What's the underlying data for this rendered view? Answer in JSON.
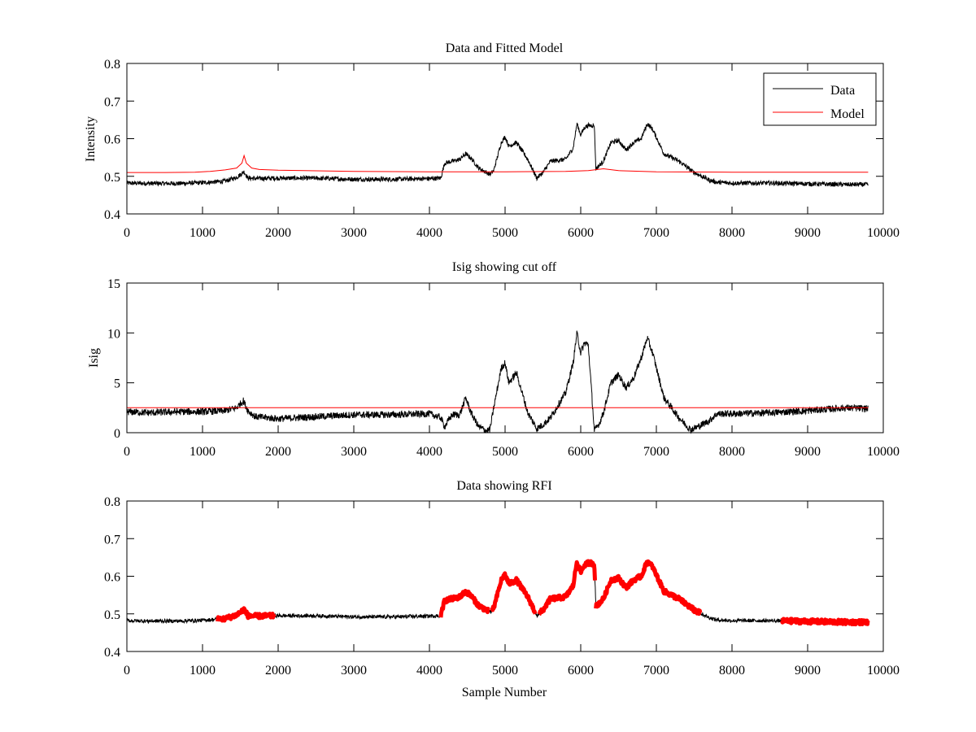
{
  "chart_data": [
    {
      "type": "line",
      "title": "Data and Fitted Model",
      "xlabel": "",
      "ylabel": "Intensity",
      "xlim": [
        0,
        10000
      ],
      "ylim": [
        0.4,
        0.8
      ],
      "xticks": [
        0,
        1000,
        2000,
        3000,
        4000,
        5000,
        6000,
        7000,
        8000,
        9000,
        10000
      ],
      "yticks": [
        0.4,
        0.5,
        0.6,
        0.7,
        0.8
      ],
      "legend": "top-right",
      "grid": false,
      "series": [
        {
          "name": "Data",
          "color": "#000000",
          "x": [
            0,
            300,
            700,
            1000,
            1300,
            1450,
            1550,
            1600,
            1700,
            2000,
            2500,
            3000,
            3500,
            4000,
            4150,
            4200,
            4300,
            4400,
            4480,
            4550,
            4650,
            4800,
            4850,
            4950,
            5000,
            5050,
            5150,
            5300,
            5420,
            5500,
            5600,
            5800,
            5900,
            5950,
            6000,
            6050,
            6100,
            6180,
            6200,
            6300,
            6400,
            6500,
            6600,
            6700,
            6800,
            6880,
            6950,
            7100,
            7300,
            7500,
            7700,
            7800,
            8000,
            8500,
            9000,
            9500,
            9800
          ],
          "y": [
            0.482,
            0.481,
            0.481,
            0.483,
            0.487,
            0.497,
            0.512,
            0.495,
            0.494,
            0.495,
            0.495,
            0.492,
            0.492,
            0.494,
            0.495,
            0.535,
            0.54,
            0.545,
            0.56,
            0.548,
            0.522,
            0.505,
            0.515,
            0.59,
            0.605,
            0.58,
            0.59,
            0.545,
            0.495,
            0.51,
            0.54,
            0.545,
            0.575,
            0.64,
            0.61,
            0.63,
            0.635,
            0.635,
            0.52,
            0.54,
            0.59,
            0.595,
            0.57,
            0.59,
            0.6,
            0.64,
            0.625,
            0.56,
            0.54,
            0.51,
            0.49,
            0.484,
            0.482,
            0.482,
            0.48,
            0.478,
            0.478
          ],
          "noise": 0.006
        },
        {
          "name": "Model",
          "color": "#ff0000",
          "x": [
            0,
            500,
            900,
            1100,
            1300,
            1450,
            1520,
            1550,
            1580,
            1650,
            1750,
            2000,
            3000,
            4000,
            5000,
            5800,
            6100,
            6300,
            6500,
            7000,
            8000,
            9000,
            9800
          ],
          "y": [
            0.51,
            0.51,
            0.511,
            0.513,
            0.517,
            0.522,
            0.535,
            0.555,
            0.535,
            0.522,
            0.518,
            0.516,
            0.513,
            0.512,
            0.512,
            0.513,
            0.515,
            0.52,
            0.515,
            0.512,
            0.511,
            0.511,
            0.511
          ],
          "noise": 0
        }
      ]
    },
    {
      "type": "line",
      "title": "Isig showing cut off",
      "xlabel": "",
      "ylabel": "Isig",
      "xlim": [
        0,
        10000
      ],
      "ylim": [
        0,
        15
      ],
      "xticks": [
        0,
        1000,
        2000,
        3000,
        4000,
        5000,
        6000,
        7000,
        8000,
        9000,
        10000
      ],
      "yticks": [
        0,
        5,
        10,
        15
      ],
      "grid": false,
      "series": [
        {
          "color": "#000000",
          "x": [
            0,
            300,
            700,
            1000,
            1300,
            1450,
            1540,
            1600,
            1700,
            2000,
            2500,
            3000,
            3500,
            4000,
            4150,
            4200,
            4300,
            4400,
            4480,
            4550,
            4650,
            4750,
            4800,
            4850,
            4950,
            5000,
            5050,
            5150,
            5300,
            5420,
            5500,
            5600,
            5800,
            5900,
            5950,
            6000,
            6050,
            6100,
            6180,
            6200,
            6250,
            6300,
            6400,
            6500,
            6600,
            6700,
            6800,
            6880,
            6950,
            7100,
            7300,
            7450,
            7550,
            7700,
            7800,
            8000,
            8500,
            9000,
            9500,
            9800
          ],
          "y": [
            2.1,
            2.0,
            2.1,
            2.1,
            2.2,
            2.5,
            3.2,
            2.2,
            1.6,
            1.4,
            1.6,
            1.8,
            1.8,
            1.9,
            1.5,
            0.6,
            1.8,
            1.8,
            3.5,
            2.0,
            0.6,
            0.2,
            0.3,
            2.5,
            6.5,
            7.0,
            5.0,
            6.0,
            2.0,
            0.4,
            0.8,
            1.5,
            4.0,
            7.0,
            10.0,
            8.0,
            9.0,
            8.8,
            0.2,
            0.4,
            1.0,
            2.0,
            5.0,
            5.8,
            4.5,
            5.5,
            7.5,
            9.5,
            8.0,
            3.5,
            1.5,
            0.3,
            0.6,
            1.2,
            1.9,
            1.9,
            2.0,
            2.2,
            2.5,
            2.4
          ],
          "noise": 0.35
        },
        {
          "color": "#ff0000",
          "x": [
            0,
            9800
          ],
          "y": [
            2.5,
            2.5
          ],
          "noise": 0
        }
      ]
    },
    {
      "type": "line",
      "title": "Data showing RFI",
      "xlabel": "Sample Number",
      "ylabel": "",
      "xlim": [
        0,
        10000
      ],
      "ylim": [
        0.4,
        0.8
      ],
      "xticks": [
        0,
        1000,
        2000,
        3000,
        4000,
        5000,
        6000,
        7000,
        8000,
        9000,
        10000
      ],
      "yticks": [
        0.4,
        0.5,
        0.6,
        0.7,
        0.8
      ],
      "grid": false,
      "series": [
        {
          "color": "#000000",
          "x": [
            0,
            300,
            700,
            1000,
            1300,
            1450,
            1550,
            1600,
            1700,
            2000,
            2500,
            3000,
            3500,
            4000,
            4150,
            4200,
            4300,
            4400,
            4480,
            4550,
            4650,
            4800,
            4850,
            4950,
            5000,
            5050,
            5150,
            5300,
            5420,
            5500,
            5600,
            5800,
            5900,
            5950,
            6000,
            6050,
            6100,
            6180,
            6200,
            6300,
            6400,
            6500,
            6600,
            6700,
            6800,
            6880,
            6950,
            7100,
            7300,
            7500,
            7700,
            7800,
            8000,
            8500,
            9000,
            9500,
            9800
          ],
          "y": [
            0.482,
            0.481,
            0.481,
            0.483,
            0.487,
            0.497,
            0.512,
            0.495,
            0.494,
            0.495,
            0.495,
            0.492,
            0.492,
            0.494,
            0.495,
            0.535,
            0.54,
            0.545,
            0.56,
            0.548,
            0.522,
            0.505,
            0.515,
            0.59,
            0.605,
            0.58,
            0.59,
            0.545,
            0.495,
            0.51,
            0.54,
            0.545,
            0.575,
            0.64,
            0.61,
            0.63,
            0.635,
            0.635,
            0.52,
            0.54,
            0.59,
            0.595,
            0.57,
            0.59,
            0.6,
            0.64,
            0.625,
            0.56,
            0.54,
            0.51,
            0.49,
            0.484,
            0.482,
            0.482,
            0.48,
            0.478,
            0.478
          ],
          "noise": 0.005
        }
      ],
      "highlighted_ranges": [
        [
          1200,
          1950
        ],
        [
          4150,
          4780
        ],
        [
          4830,
          5400
        ],
        [
          5450,
          6190
        ],
        [
          6200,
          7580
        ],
        [
          8650,
          9800
        ]
      ],
      "highlight_color": "#ff0000"
    }
  ]
}
